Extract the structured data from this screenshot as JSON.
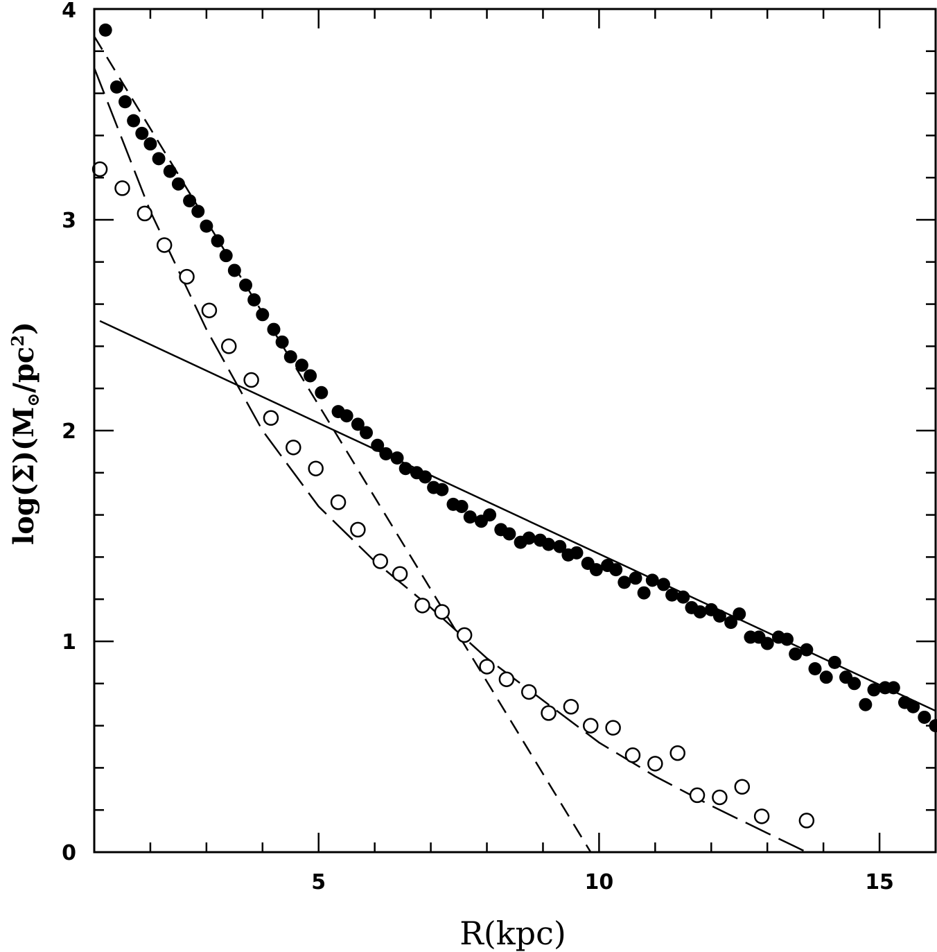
{
  "chart_data": {
    "type": "scatter",
    "xlabel": "R(kpc)",
    "ylabel": {
      "prefix": "log(Σ)(M",
      "subscript": "⊙",
      "suffix": "/pc",
      "superscript": "2",
      "close": ")"
    },
    "xlim": [
      1.0,
      16.0
    ],
    "ylim": [
      0,
      4
    ],
    "x_ticks": [
      "5",
      "10",
      "15"
    ],
    "x_tick_values": [
      5,
      10,
      15
    ],
    "y_ticks": [
      "0",
      "1",
      "2",
      "3",
      "4"
    ],
    "y_tick_values": [
      0,
      1,
      2,
      3,
      4
    ],
    "grid": false,
    "series": [
      {
        "marker": "filled-circle",
        "points": [
          [
            1.2,
            3.9
          ],
          [
            1.4,
            3.63
          ],
          [
            1.55,
            3.56
          ],
          [
            1.7,
            3.47
          ],
          [
            1.85,
            3.41
          ],
          [
            2.0,
            3.36
          ],
          [
            2.15,
            3.29
          ],
          [
            2.35,
            3.23
          ],
          [
            2.5,
            3.17
          ],
          [
            2.7,
            3.09
          ],
          [
            2.85,
            3.04
          ],
          [
            3.0,
            2.97
          ],
          [
            3.2,
            2.9
          ],
          [
            3.35,
            2.83
          ],
          [
            3.5,
            2.76
          ],
          [
            3.7,
            2.69
          ],
          [
            3.85,
            2.62
          ],
          [
            4.0,
            2.55
          ],
          [
            4.2,
            2.48
          ],
          [
            4.35,
            2.42
          ],
          [
            4.5,
            2.35
          ],
          [
            4.7,
            2.31
          ],
          [
            4.85,
            2.26
          ],
          [
            5.05,
            2.18
          ],
          [
            5.35,
            2.09
          ],
          [
            5.5,
            2.07
          ],
          [
            5.7,
            2.03
          ],
          [
            5.85,
            1.99
          ],
          [
            6.05,
            1.93
          ],
          [
            6.2,
            1.89
          ],
          [
            6.4,
            1.87
          ],
          [
            6.55,
            1.82
          ],
          [
            6.75,
            1.8
          ],
          [
            6.9,
            1.78
          ],
          [
            7.05,
            1.73
          ],
          [
            7.2,
            1.72
          ],
          [
            7.4,
            1.65
          ],
          [
            7.55,
            1.64
          ],
          [
            7.7,
            1.59
          ],
          [
            7.9,
            1.57
          ],
          [
            8.05,
            1.6
          ],
          [
            8.25,
            1.53
          ],
          [
            8.4,
            1.51
          ],
          [
            8.6,
            1.47
          ],
          [
            8.75,
            1.49
          ],
          [
            8.95,
            1.48
          ],
          [
            9.1,
            1.46
          ],
          [
            9.3,
            1.45
          ],
          [
            9.45,
            1.41
          ],
          [
            9.6,
            1.42
          ],
          [
            9.8,
            1.37
          ],
          [
            9.95,
            1.34
          ],
          [
            10.15,
            1.36
          ],
          [
            10.3,
            1.34
          ],
          [
            10.45,
            1.28
          ],
          [
            10.65,
            1.3
          ],
          [
            10.8,
            1.23
          ],
          [
            10.95,
            1.29
          ],
          [
            11.15,
            1.27
          ],
          [
            11.3,
            1.22
          ],
          [
            11.5,
            1.21
          ],
          [
            11.65,
            1.16
          ],
          [
            11.8,
            1.14
          ],
          [
            12.0,
            1.15
          ],
          [
            12.15,
            1.12
          ],
          [
            12.35,
            1.09
          ],
          [
            12.5,
            1.13
          ],
          [
            12.7,
            1.02
          ],
          [
            12.85,
            1.02
          ],
          [
            13.0,
            0.99
          ],
          [
            13.2,
            1.02
          ],
          [
            13.35,
            1.01
          ],
          [
            13.5,
            0.94
          ],
          [
            13.7,
            0.96
          ],
          [
            13.85,
            0.87
          ],
          [
            14.05,
            0.83
          ],
          [
            14.2,
            0.9
          ],
          [
            14.4,
            0.83
          ],
          [
            14.55,
            0.8
          ],
          [
            14.75,
            0.7
          ],
          [
            14.9,
            0.77
          ],
          [
            15.1,
            0.78
          ],
          [
            15.25,
            0.78
          ],
          [
            15.45,
            0.71
          ],
          [
            15.6,
            0.69
          ],
          [
            15.8,
            0.64
          ],
          [
            16.0,
            0.6
          ]
        ]
      },
      {
        "marker": "open-circle",
        "points": [
          [
            1.1,
            3.24
          ],
          [
            1.5,
            3.15
          ],
          [
            1.9,
            3.03
          ],
          [
            2.25,
            2.88
          ],
          [
            2.65,
            2.73
          ],
          [
            3.05,
            2.57
          ],
          [
            3.4,
            2.4
          ],
          [
            3.8,
            2.24
          ],
          [
            4.15,
            2.06
          ],
          [
            4.55,
            1.92
          ],
          [
            4.95,
            1.82
          ],
          [
            5.35,
            1.66
          ],
          [
            5.7,
            1.53
          ],
          [
            6.1,
            1.38
          ],
          [
            6.45,
            1.32
          ],
          [
            6.85,
            1.17
          ],
          [
            7.2,
            1.14
          ],
          [
            7.6,
            1.03
          ],
          [
            8.0,
            0.88
          ],
          [
            8.35,
            0.82
          ],
          [
            8.75,
            0.76
          ],
          [
            9.1,
            0.66
          ],
          [
            9.5,
            0.69
          ],
          [
            9.85,
            0.6
          ],
          [
            10.25,
            0.59
          ],
          [
            10.6,
            0.46
          ],
          [
            11.0,
            0.42
          ],
          [
            11.4,
            0.47
          ],
          [
            11.75,
            0.27
          ],
          [
            12.15,
            0.26
          ],
          [
            12.55,
            0.31
          ],
          [
            12.9,
            0.17
          ],
          [
            13.7,
            0.15
          ]
        ]
      }
    ],
    "lines": [
      {
        "style": "solid",
        "points": [
          [
            1.1,
            2.52
          ],
          [
            16.0,
            0.67
          ]
        ]
      },
      {
        "style": "short-dash",
        "points": [
          [
            1.0,
            3.87
          ],
          [
            9.85,
            0.0
          ]
        ]
      },
      {
        "style": "long-dash",
        "points": [
          [
            1.0,
            3.72
          ],
          [
            2.0,
            3.04
          ],
          [
            3.0,
            2.48
          ],
          [
            4.0,
            2.0
          ],
          [
            5.0,
            1.64
          ],
          [
            6.0,
            1.38
          ],
          [
            7.0,
            1.16
          ],
          [
            8.0,
            0.92
          ],
          [
            9.0,
            0.72
          ],
          [
            10.0,
            0.52
          ],
          [
            11.0,
            0.36
          ],
          [
            12.0,
            0.22
          ],
          [
            13.0,
            0.09
          ],
          [
            13.7,
            0.0
          ]
        ]
      }
    ]
  }
}
